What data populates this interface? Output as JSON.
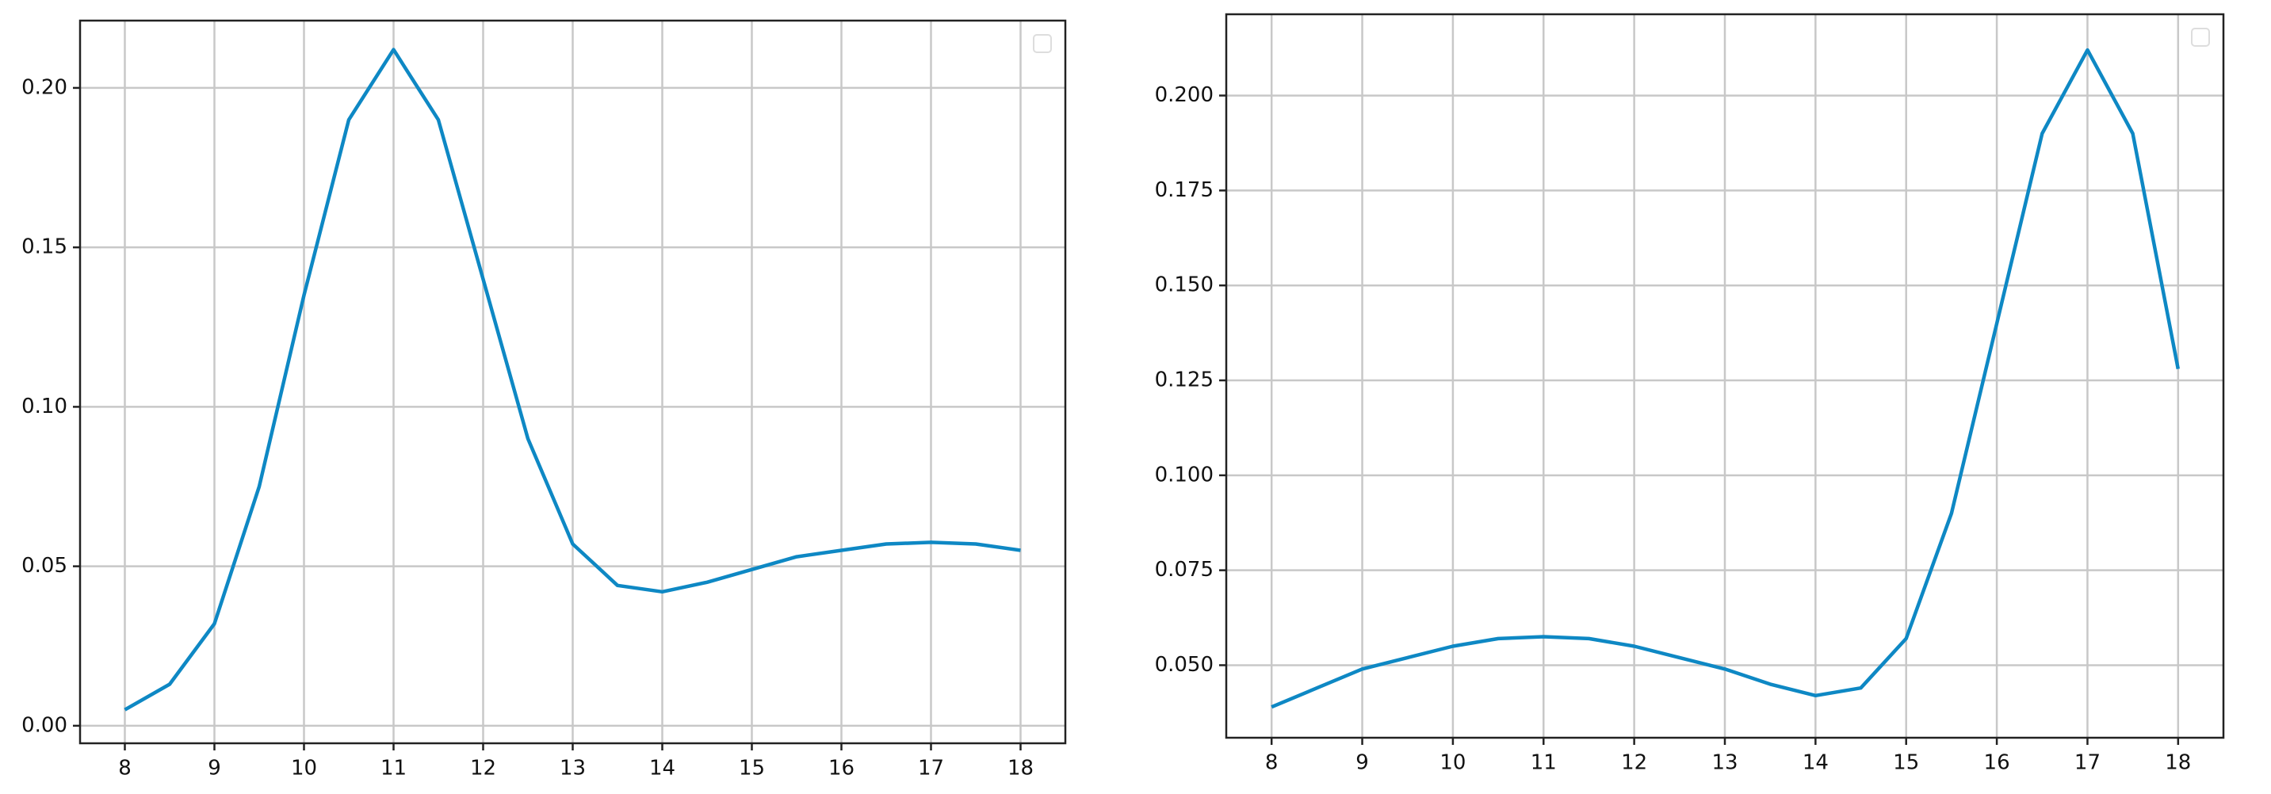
{
  "chart_data": [
    {
      "type": "line",
      "x": [
        8,
        8.5,
        9,
        9.5,
        10,
        10.5,
        11,
        11.5,
        12,
        12.5,
        13,
        13.5,
        14,
        14.5,
        15,
        15.5,
        16,
        16.5,
        17,
        17.5,
        18
      ],
      "values": [
        0.005,
        0.013,
        0.032,
        0.075,
        0.135,
        0.19,
        0.212,
        0.19,
        0.14,
        0.09,
        0.057,
        0.044,
        0.042,
        0.045,
        0.049,
        0.053,
        0.055,
        0.057,
        0.0575,
        0.057,
        0.055
      ],
      "color": "#0e88c4",
      "xlim": [
        7.5,
        18.5
      ],
      "ylim": [
        -0.0055,
        0.2211
      ],
      "xticks": [
        8,
        9,
        10,
        11,
        12,
        13,
        14,
        15,
        16,
        17,
        18
      ],
      "yticks": [
        {
          "value": 0,
          "label": "0.00"
        },
        {
          "value": 0.05,
          "label": "0.05"
        },
        {
          "value": 0.1,
          "label": "0.10"
        },
        {
          "value": 0.15,
          "label": "0.15"
        },
        {
          "value": 0.2,
          "label": "0.20"
        }
      ],
      "grid": true,
      "legend": "upper right"
    },
    {
      "type": "line",
      "x": [
        8,
        8.5,
        9,
        9.5,
        10,
        10.5,
        11,
        11.5,
        12,
        12.5,
        13,
        13.5,
        14,
        14.5,
        15,
        15.5,
        16,
        16.5,
        17,
        17.5,
        18
      ],
      "values": [
        0.039,
        0.044,
        0.049,
        0.052,
        0.055,
        0.057,
        0.0575,
        0.057,
        0.055,
        0.052,
        0.049,
        0.045,
        0.042,
        0.044,
        0.057,
        0.09,
        0.14,
        0.19,
        0.212,
        0.19,
        0.128
      ],
      "color": "#0e88c4",
      "xlim": [
        7.5,
        18.5
      ],
      "ylim": [
        0.0309,
        0.2214
      ],
      "xticks": [
        8,
        9,
        10,
        11,
        12,
        13,
        14,
        15,
        16,
        17,
        18
      ],
      "yticks": [
        {
          "value": 0.05,
          "label": "0.050"
        },
        {
          "value": 0.075,
          "label": "0.075"
        },
        {
          "value": 0.1,
          "label": "0.100"
        },
        {
          "value": 0.125,
          "label": "0.125"
        },
        {
          "value": 0.15,
          "label": "0.150"
        },
        {
          "value": 0.175,
          "label": "0.175"
        },
        {
          "value": 0.2,
          "label": "0.200"
        }
      ],
      "grid": true,
      "legend": "upper right"
    }
  ]
}
